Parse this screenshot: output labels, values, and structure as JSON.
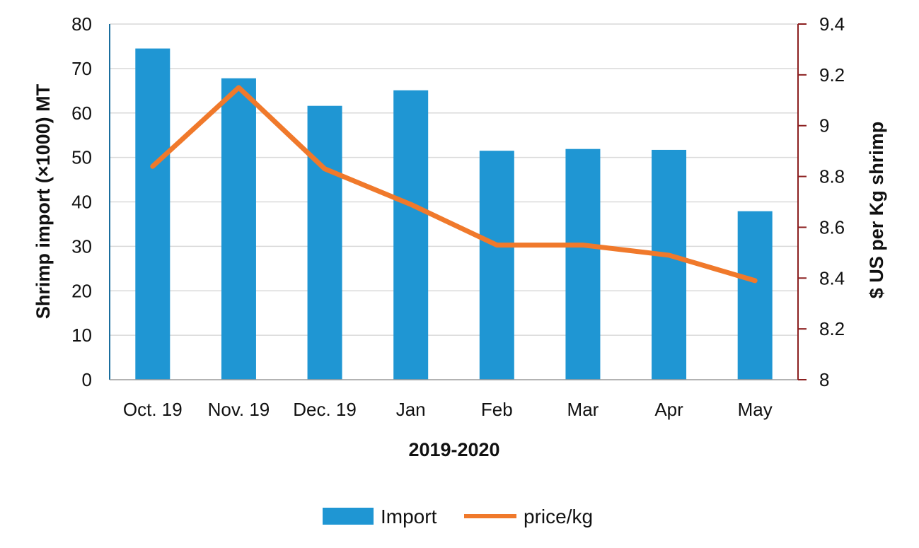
{
  "chart_data": {
    "type": "bar+line",
    "xlabel": "2019-2020",
    "ylabel_left": "Shrimp import (×1000) MT",
    "ylabel_right": "$ US per Kg shrimp",
    "categories": [
      "Oct. 19",
      "Nov. 19",
      "Dec. 19",
      "Jan",
      "Feb",
      "Mar",
      "Apr",
      "May"
    ],
    "series": [
      {
        "name": "Import",
        "type": "bar",
        "axis": "left",
        "color": "#1f96d3",
        "values": [
          74.5,
          67.8,
          61.6,
          65.1,
          51.5,
          51.9,
          51.7,
          37.9
        ]
      },
      {
        "name": "price/kg",
        "type": "line",
        "axis": "right",
        "color": "#f0792b",
        "values": [
          8.84,
          9.15,
          8.83,
          8.69,
          8.53,
          8.53,
          8.49,
          8.39
        ]
      }
    ],
    "y_left": {
      "min": 0,
      "max": 80,
      "ticks": [
        "0",
        "10",
        "20",
        "30",
        "40",
        "50",
        "60",
        "70",
        "80"
      ]
    },
    "y_right": {
      "min": 8,
      "max": 9.4,
      "ticks": [
        "8",
        "8.2",
        "8.4",
        "8.6",
        "8.8",
        "9",
        "9.2",
        "9.4"
      ]
    },
    "grid": true,
    "legend": "bottom",
    "colors": {
      "left_axis": "#1a6e9e",
      "right_axis": "#8b1f1f",
      "grid": "#d9d9d9"
    }
  }
}
